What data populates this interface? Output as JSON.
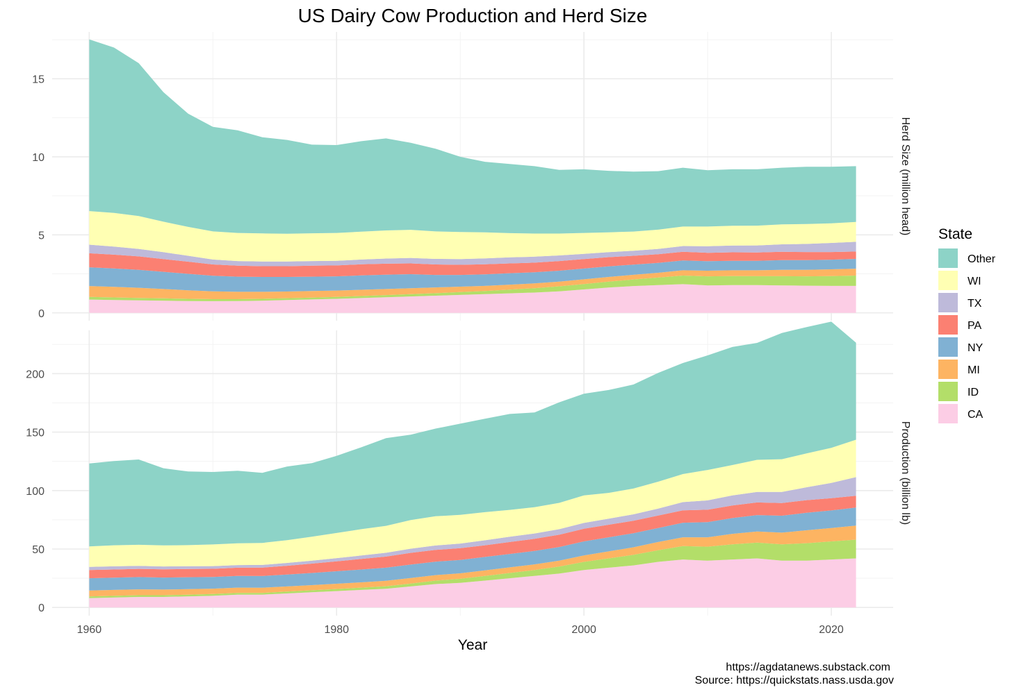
{
  "chart_data": {
    "type": "area",
    "stacked": true,
    "title": "US Dairy Cow Production and Herd Size",
    "xlabel": "Year",
    "x_ticks": [
      1960,
      1980,
      2000,
      2020
    ],
    "xlim": [
      1957,
      2025
    ],
    "legend": {
      "title": "State",
      "position": "right",
      "entries": [
        "Other",
        "WI",
        "TX",
        "PA",
        "NY",
        "MI",
        "ID",
        "CA"
      ]
    },
    "colors": {
      "Other": "#8DD3C7",
      "WI": "#FFFFB3",
      "TX": "#BEBADA",
      "PA": "#FB8072",
      "NY": "#80B1D3",
      "MI": "#FDB462",
      "ID": "#B3DE69",
      "CA": "#FCCDE5"
    },
    "caption": [
      "https://agdatanews.substack.com",
      "Source: https://quickstats.nass.usda.gov"
    ],
    "grid": true,
    "panels": [
      {
        "label": "Herd Size (million head)",
        "ylim": [
          -0.5,
          18
        ],
        "y_ticks": [
          0,
          5,
          10,
          15
        ],
        "x": [
          1960,
          1962,
          1964,
          1966,
          1968,
          1970,
          1972,
          1974,
          1976,
          1978,
          1980,
          1982,
          1984,
          1986,
          1988,
          1990,
          1992,
          1994,
          1996,
          1998,
          2000,
          2002,
          2004,
          2006,
          2008,
          2010,
          2012,
          2014,
          2016,
          2018,
          2020,
          2022
        ],
        "series": [
          {
            "name": "CA",
            "values": [
              0.85,
              0.82,
              0.8,
              0.78,
              0.76,
              0.75,
              0.76,
              0.78,
              0.82,
              0.86,
              0.9,
              0.95,
              1.0,
              1.05,
              1.1,
              1.15,
              1.2,
              1.25,
              1.3,
              1.38,
              1.5,
              1.62,
              1.72,
              1.78,
              1.84,
              1.76,
              1.78,
              1.78,
              1.76,
              1.74,
              1.73,
              1.73
            ]
          },
          {
            "name": "ID",
            "values": [
              0.17,
              0.17,
              0.16,
              0.15,
              0.14,
              0.13,
              0.12,
              0.12,
              0.12,
              0.12,
              0.12,
              0.13,
              0.14,
              0.15,
              0.16,
              0.18,
              0.2,
              0.24,
              0.28,
              0.32,
              0.35,
              0.38,
              0.42,
              0.48,
              0.55,
              0.58,
              0.58,
              0.57,
              0.59,
              0.6,
              0.63,
              0.66
            ]
          },
          {
            "name": "MI",
            "values": [
              0.7,
              0.68,
              0.65,
              0.6,
              0.55,
              0.5,
              0.47,
              0.45,
              0.43,
              0.42,
              0.41,
              0.4,
              0.39,
              0.38,
              0.37,
              0.35,
              0.33,
              0.32,
              0.31,
              0.3,
              0.3,
              0.3,
              0.3,
              0.31,
              0.34,
              0.36,
              0.37,
              0.38,
              0.41,
              0.42,
              0.43,
              0.44
            ]
          },
          {
            "name": "NY",
            "values": [
              1.2,
              1.18,
              1.15,
              1.1,
              1.05,
              1.0,
              0.97,
              0.95,
              0.93,
              0.92,
              0.91,
              0.92,
              0.92,
              0.9,
              0.8,
              0.75,
              0.74,
              0.73,
              0.71,
              0.7,
              0.69,
              0.68,
              0.65,
              0.63,
              0.63,
              0.61,
              0.61,
              0.61,
              0.62,
              0.62,
              0.62,
              0.63
            ]
          },
          {
            "name": "PA",
            "values": [
              0.9,
              0.88,
              0.86,
              0.82,
              0.78,
              0.72,
              0.7,
              0.69,
              0.69,
              0.7,
              0.7,
              0.71,
              0.7,
              0.69,
              0.67,
              0.65,
              0.64,
              0.63,
              0.62,
              0.62,
              0.61,
              0.59,
              0.57,
              0.56,
              0.55,
              0.54,
              0.54,
              0.53,
              0.53,
              0.52,
              0.49,
              0.47
            ]
          },
          {
            "name": "TX",
            "values": [
              0.55,
              0.52,
              0.48,
              0.44,
              0.38,
              0.32,
              0.3,
              0.3,
              0.3,
              0.3,
              0.3,
              0.31,
              0.33,
              0.35,
              0.36,
              0.37,
              0.38,
              0.39,
              0.38,
              0.36,
              0.33,
              0.32,
              0.32,
              0.34,
              0.37,
              0.42,
              0.43,
              0.45,
              0.48,
              0.52,
              0.58,
              0.62
            ]
          },
          {
            "name": "WI",
            "values": [
              2.15,
              2.15,
              2.1,
              1.95,
              1.85,
              1.8,
              1.8,
              1.8,
              1.78,
              1.78,
              1.78,
              1.78,
              1.8,
              1.8,
              1.76,
              1.73,
              1.67,
              1.55,
              1.48,
              1.4,
              1.34,
              1.27,
              1.23,
              1.23,
              1.25,
              1.26,
              1.27,
              1.27,
              1.28,
              1.27,
              1.26,
              1.28
            ]
          },
          {
            "name": "Other",
            "values": [
              11.0,
              10.6,
              9.8,
              8.3,
              7.25,
              6.7,
              6.58,
              6.16,
              6.01,
              5.68,
              5.63,
              5.8,
              5.9,
              5.58,
              5.3,
              4.82,
              4.52,
              4.43,
              4.32,
              4.08,
              4.08,
              3.94,
              3.84,
              3.75,
              3.77,
              3.61,
              3.62,
              3.61,
              3.63,
              3.67,
              3.62,
              3.57
            ]
          }
        ]
      },
      {
        "label": "Production (billion lb)",
        "ylim": [
          -7,
          237
        ],
        "y_ticks": [
          0,
          50,
          100,
          150,
          200
        ],
        "x": [
          1960,
          1962,
          1964,
          1966,
          1968,
          1970,
          1972,
          1974,
          1976,
          1978,
          1980,
          1982,
          1984,
          1986,
          1988,
          1990,
          1992,
          1994,
          1996,
          1998,
          2000,
          2002,
          2004,
          2006,
          2008,
          2010,
          2012,
          2014,
          2016,
          2018,
          2020,
          2022
        ],
        "series": [
          {
            "name": "CA",
            "values": [
              8,
              8.5,
              9,
              9,
              9.5,
              10,
              11,
              11,
              12,
              13,
              14,
              15,
              16,
              18,
              20,
              21,
              23,
              25,
              27,
              29,
              32,
              34,
              36,
              39,
              41,
              40,
              41,
              42,
              40,
              40,
              41,
              42
            ]
          },
          {
            "name": "ID",
            "values": [
              1.5,
              1.5,
              1.5,
              1.5,
              1.5,
              1.5,
              1.5,
              1.5,
              1.6,
              1.7,
              1.8,
              2,
              2.2,
              2.5,
              3,
              3.5,
              4,
              4.5,
              5,
              6,
              7,
              8,
              9,
              10,
              11.5,
              12,
              13,
              13.5,
              14,
              15,
              15.5,
              16
            ]
          },
          {
            "name": "MI",
            "values": [
              5,
              5,
              5,
              4.8,
              4.7,
              4.6,
              4.5,
              4.4,
              4.4,
              4.4,
              4.5,
              4.5,
              4.6,
              4.7,
              4.7,
              4.7,
              4.7,
              4.8,
              4.9,
              5,
              5.5,
              6,
              6.5,
              7,
              7.5,
              8,
              9,
              9.5,
              10,
              11,
              11.5,
              12
            ]
          },
          {
            "name": "NY",
            "values": [
              10.5,
              10.5,
              10.5,
              10.3,
              10.2,
              10,
              10,
              10,
              10.2,
              10.4,
              10.7,
              11,
              11.2,
              11.5,
              11.5,
              11.5,
              11.5,
              11.5,
              11.5,
              11.7,
              12,
              12,
              12,
              12,
              12.5,
              13,
              13.5,
              14,
              14.5,
              15,
              15,
              15.5
            ]
          },
          {
            "name": "PA",
            "values": [
              7,
              7,
              7,
              7,
              7,
              7,
              7,
              7.2,
              7.5,
              8,
              8.5,
              9,
              9.5,
              10,
              10,
              10,
              10,
              10.2,
              10.3,
              10.5,
              10.8,
              10.8,
              10.7,
              10.6,
              10.6,
              10.6,
              10.8,
              10.8,
              10.8,
              10.8,
              10.5,
              10
            ]
          },
          {
            "name": "TX",
            "values": [
              2.7,
              2.7,
              2.6,
              2.5,
              2.4,
              2.3,
              2.3,
              2.3,
              2.4,
              2.5,
              2.7,
              3,
              3.3,
              3.6,
              3.8,
              4,
              4.3,
              4.5,
              4.6,
              4.8,
              5,
              5.2,
              5.5,
              6,
              7,
              8,
              8.5,
              9,
              9.5,
              11,
              13,
              16
            ]
          },
          {
            "name": "WI",
            "values": [
              17.5,
              18,
              18,
              18,
              18,
              18.5,
              18.6,
              18.8,
              19.5,
              20.5,
              21.5,
              22.5,
              23,
              24.5,
              25,
              24.5,
              24,
              23,
              22.5,
              22.5,
              23.5,
              22,
              22,
              23,
              24,
              26,
              26,
              27.5,
              28,
              29,
              30,
              32
            ]
          },
          {
            "name": "Other",
            "values": [
              71,
              72,
              73,
              66,
              63,
              62,
              62,
              60,
              63,
              63,
              66,
              70,
              75,
              73,
              75,
              78,
              80,
              82,
              81,
              86,
              87,
              88,
              89,
              93,
              95,
              98,
              101,
              100,
              108,
              108,
              108,
              83
            ]
          }
        ]
      }
    ]
  }
}
